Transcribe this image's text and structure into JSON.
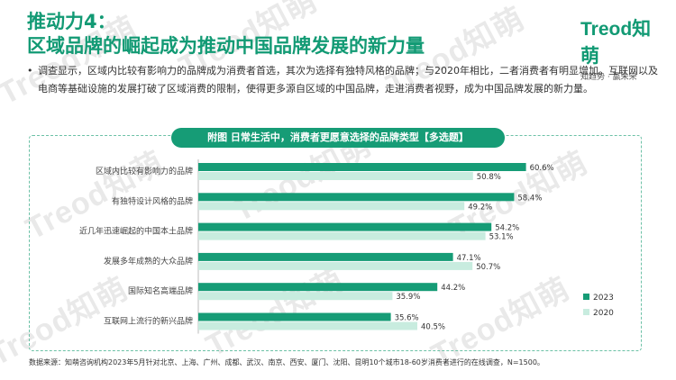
{
  "header": {
    "title_line1": "推动力4：",
    "title_line2": "区域品牌的崛起成为推动中国品牌发展的新力量"
  },
  "logo": {
    "mark": "Treod知萌",
    "tagline": "知趋势 · 赢未来"
  },
  "watermark": "Treod知萌",
  "bullet": {
    "marker": "•",
    "text": "调查显示，区域内比较有影响力的品牌成为消费者首选，其次为选择有独特风格的品牌；与2020年相比，二者消费者有明显增加。互联网以及电商等基础设施的发展打破了区域消费的限制，使得更多源自区域的中国品牌，走进消费者视野，成为中国品牌发展的新力量。"
  },
  "chart_title": "附图 日常生活中，消费者更愿意选择的品牌类型【多选题】",
  "source": "数据来源：知萌咨询机构2023年5月针对北京、上海、广州、成都、武汉、南京、西安、厦门、沈阳、昆明10个城市18-60岁消费者进行的在线调查，N=1500。",
  "colors": {
    "series_2023": "#169c76",
    "series_2020": "#c8ecdf",
    "accent": "#129a74"
  },
  "chart_data": {
    "type": "bar",
    "orientation": "horizontal",
    "title": "附图 日常生活中，消费者更愿意选择的品牌类型【多选题】",
    "categories": [
      "区域内比较有影响力的品牌",
      "有独特设计风格的品牌",
      "近几年迅速崛起的中国本土品牌",
      "发展多年成熟的大众品牌",
      "国际知名高端品牌",
      "互联网上流行的新兴品牌"
    ],
    "series": [
      {
        "name": "2023",
        "values": [
          60.6,
          58.4,
          54.2,
          47.1,
          44.2,
          35.6
        ],
        "labels": [
          "60.6%",
          "58.4%",
          "54.2%",
          "47.1%",
          "44.2%",
          "35.6%"
        ]
      },
      {
        "name": "2020",
        "values": [
          50.8,
          49.2,
          53.1,
          50.7,
          35.9,
          40.5
        ],
        "labels": [
          "50.8%",
          "49.2%",
          "53.1%",
          "50.7%",
          "35.9%",
          "40.5%"
        ]
      }
    ],
    "xlim": [
      0,
      100
    ],
    "legend": "bottom-right",
    "grid": false
  }
}
